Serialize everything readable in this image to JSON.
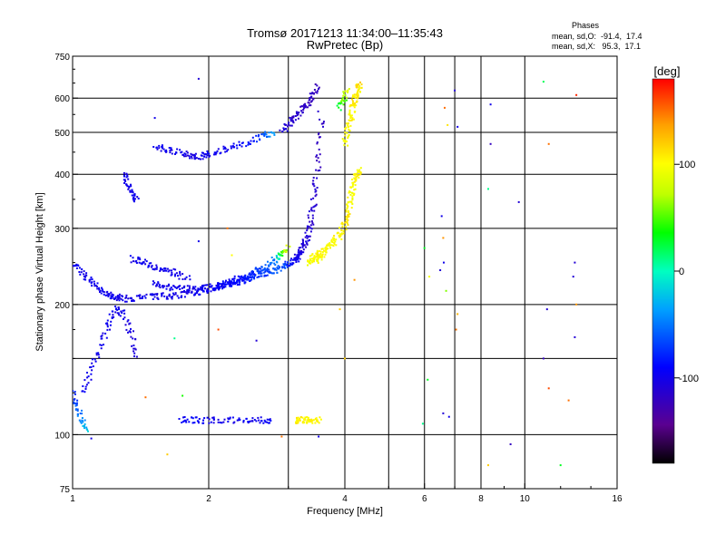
{
  "chart_data": {
    "type": "scatter",
    "title": "Tromsø 20171213 11:34:00–11:35:43",
    "subtitle": "RwPretec (Bp)",
    "xlabel": "Frequency [MHz]",
    "ylabel": "Stationary phase Virtual Height [km]",
    "x_scale": "log",
    "y_scale": "log",
    "xlim": [
      1,
      16
    ],
    "ylim": [
      75,
      750
    ],
    "grid": true,
    "x_ticks": [
      1,
      2,
      4,
      6,
      8,
      10,
      16
    ],
    "x_tick_labels": [
      "1",
      "2",
      "4",
      "6",
      "8",
      "10",
      "16"
    ],
    "y_ticks": [
      75,
      100,
      200,
      300,
      400,
      500,
      600,
      750
    ],
    "y_tick_labels": [
      "75",
      "100",
      "200",
      "300",
      "400",
      "500",
      "600",
      "750"
    ],
    "v_gridlines": [
      2,
      3,
      4,
      5,
      6,
      7,
      8,
      10
    ],
    "h_gridlines": [
      100,
      150,
      200,
      300,
      400,
      500,
      600
    ],
    "stats": {
      "heading": "Phases",
      "line_o": "mean, sd,O:  -91.4,  17.4",
      "line_x": "mean, sd,X:   95.3,  17.1"
    },
    "colorbar": {
      "label": "[deg]",
      "range": [
        -180,
        180
      ],
      "ticks": [
        100,
        0,
        -100
      ],
      "tick_labels": [
        "100",
        "0",
        "-100"
      ]
    },
    "traces": [
      {
        "mode": "O",
        "x": [
          1.52,
          1.62,
          1.72,
          1.82,
          1.92,
          2.0,
          2.15,
          2.3,
          2.5,
          2.65,
          2.8
        ],
        "y": [
          465,
          455,
          448,
          442,
          440,
          445,
          455,
          465,
          478,
          490,
          500
        ],
        "phase": [
          -100,
          -100,
          -100,
          -105,
          -100,
          -100,
          -98,
          -95,
          -85,
          -65,
          -30
        ]
      },
      {
        "mode": "O",
        "x": [
          2.9,
          3.0,
          3.1,
          3.2,
          3.3,
          3.4,
          3.5
        ],
        "y": [
          505,
          520,
          540,
          560,
          585,
          610,
          640
        ],
        "phase": [
          -110,
          -112,
          -115,
          -118,
          -120,
          -120,
          -122
        ]
      },
      {
        "mode": "O",
        "x": [
          1.3,
          1.4,
          1.5,
          1.6,
          1.7,
          1.8,
          1.9,
          2.0,
          2.1,
          2.2,
          2.3,
          2.4,
          2.5,
          2.6,
          2.7,
          2.8,
          2.9,
          3.0,
          3.1,
          3.15,
          3.2,
          3.25,
          3.3,
          3.35,
          3.4,
          3.45,
          3.5,
          3.55
        ],
        "y": [
          206,
          207,
          208,
          209,
          210,
          212,
          214,
          216,
          219,
          222,
          225,
          228,
          231,
          234,
          237,
          240,
          244,
          248,
          254,
          258,
          264,
          272,
          285,
          305,
          335,
          380,
          450,
          560
        ],
        "phase": [
          -100,
          -100,
          -100,
          -100,
          -100,
          -100,
          -98,
          -95,
          -92,
          -90,
          -88,
          -85,
          -80,
          -75,
          -70,
          -62,
          -55,
          -85,
          -95,
          -100,
          -105,
          -108,
          -110,
          -112,
          -112,
          -115,
          -118,
          -118
        ]
      },
      {
        "mode": "O",
        "x": [
          1.5,
          1.6,
          1.7,
          1.8,
          1.9,
          2.0,
          2.1,
          2.2,
          2.3,
          2.4,
          2.5,
          2.6,
          2.7,
          2.8,
          2.9,
          3.0
        ],
        "y": [
          225,
          220,
          218,
          217,
          217,
          219,
          221,
          224,
          228,
          232,
          236,
          240,
          246,
          254,
          262,
          272
        ],
        "phase": [
          -100,
          -100,
          -100,
          -100,
          -100,
          -98,
          -95,
          -92,
          -90,
          -85,
          -80,
          -70,
          -60,
          -40,
          30,
          95
        ]
      },
      {
        "mode": "O",
        "x": [
          1.0,
          1.05,
          1.1,
          1.15,
          1.2,
          1.25,
          1.3
        ],
        "y": [
          250,
          235,
          225,
          215,
          210,
          208,
          207
        ],
        "phase": [
          -100,
          -100,
          -100,
          -100,
          -100,
          -100,
          -100
        ]
      },
      {
        "mode": "O",
        "x": [
          1.35,
          1.42,
          1.5,
          1.6,
          1.7,
          1.8
        ],
        "y": [
          255,
          250,
          245,
          240,
          235,
          230
        ],
        "phase": [
          -100,
          -100,
          -100,
          -100,
          -100,
          -98
        ]
      },
      {
        "mode": "O",
        "x": [
          1.05,
          1.1,
          1.15,
          1.2,
          1.25,
          1.3,
          1.35,
          1.4
        ],
        "y": [
          125,
          140,
          160,
          180,
          195,
          190,
          170,
          150
        ],
        "phase": [
          -95,
          -100,
          -100,
          -100,
          -100,
          -100,
          -105,
          -105
        ]
      },
      {
        "mode": "O",
        "x": [
          1.0,
          1.02,
          1.05,
          1.08
        ],
        "y": [
          125,
          115,
          108,
          102
        ],
        "phase": [
          -80,
          -60,
          -40,
          -20
        ]
      },
      {
        "mode": "O",
        "x": [
          1.3,
          1.33,
          1.36,
          1.39
        ],
        "y": [
          400,
          380,
          360,
          345
        ],
        "phase": [
          -100,
          -100,
          -100,
          -100
        ]
      },
      {
        "mode": "O",
        "x": [
          1.72,
          1.85,
          2.0,
          2.2,
          2.4,
          2.6,
          2.8
        ],
        "y": [
          108,
          108,
          108,
          108,
          108,
          108,
          108
        ],
        "phase": [
          -100,
          -90,
          -100,
          -100,
          -95,
          -100,
          -90
        ]
      },
      {
        "mode": "X",
        "x": [
          3.4,
          3.5,
          3.6,
          3.7,
          3.8,
          3.9,
          4.0,
          4.05,
          4.1,
          4.15,
          4.2,
          4.25,
          4.3
        ],
        "y": [
          258,
          262,
          266,
          272,
          280,
          290,
          305,
          320,
          340,
          360,
          380,
          400,
          410
        ],
        "phase": [
          100,
          105,
          100,
          98,
          102,
          100,
          105,
          110,
          100,
          95,
          100,
          105,
          100
        ]
      },
      {
        "mode": "X",
        "x": [
          3.3,
          3.4,
          3.5,
          3.6
        ],
        "y": [
          250,
          252,
          255,
          258
        ],
        "phase": [
          95,
          98,
          100,
          100
        ]
      },
      {
        "mode": "X",
        "x": [
          4.0,
          4.05,
          4.1,
          4.15,
          4.2,
          4.25,
          4.3,
          4.3
        ],
        "y": [
          470,
          500,
          530,
          560,
          590,
          610,
          630,
          650
        ],
        "phase": [
          95,
          100,
          105,
          100,
          110,
          105,
          100,
          120
        ]
      },
      {
        "mode": "X",
        "x": [
          3.9,
          4.0,
          4.05
        ],
        "y": [
          570,
          600,
          630
        ],
        "phase": [
          20,
          60,
          95
        ]
      },
      {
        "mode": "X",
        "x": [
          3.1,
          3.2,
          3.3,
          3.4,
          3.5
        ],
        "y": [
          108,
          108,
          108,
          108,
          108
        ],
        "phase": [
          100,
          110,
          100,
          105,
          100
        ]
      }
    ],
    "sparse_points": [
      {
        "x": 1.9,
        "y": 665,
        "phase": -110
      },
      {
        "x": 1.52,
        "y": 540,
        "phase": -100
      },
      {
        "x": 6.0,
        "y": 270,
        "phase": 30
      },
      {
        "x": 6.15,
        "y": 232,
        "phase": 95
      },
      {
        "x": 6.5,
        "y": 240,
        "phase": -110
      },
      {
        "x": 6.55,
        "y": 320,
        "phase": -100
      },
      {
        "x": 6.6,
        "y": 285,
        "phase": 140
      },
      {
        "x": 6.62,
        "y": 250,
        "phase": -100
      },
      {
        "x": 6.65,
        "y": 570,
        "phase": 150
      },
      {
        "x": 6.75,
        "y": 520,
        "phase": 110
      },
      {
        "x": 7.0,
        "y": 625,
        "phase": -110
      },
      {
        "x": 7.1,
        "y": 515,
        "phase": -100
      },
      {
        "x": 6.7,
        "y": 215,
        "phase": 60
      },
      {
        "x": 6.6,
        "y": 112,
        "phase": -110
      },
      {
        "x": 6.8,
        "y": 110,
        "phase": -100
      },
      {
        "x": 7.1,
        "y": 190,
        "phase": 130
      },
      {
        "x": 7.05,
        "y": 175,
        "phase": 150
      },
      {
        "x": 6.1,
        "y": 134,
        "phase": 30
      },
      {
        "x": 5.95,
        "y": 106,
        "phase": 10
      },
      {
        "x": 8.4,
        "y": 580,
        "phase": -100
      },
      {
        "x": 8.4,
        "y": 470,
        "phase": -120
      },
      {
        "x": 8.3,
        "y": 370,
        "phase": 10
      },
      {
        "x": 8.3,
        "y": 85,
        "phase": 120
      },
      {
        "x": 9.3,
        "y": 95,
        "phase": -120
      },
      {
        "x": 9.7,
        "y": 345,
        "phase": -110
      },
      {
        "x": 11.0,
        "y": 655,
        "phase": 20
      },
      {
        "x": 11.3,
        "y": 470,
        "phase": 150
      },
      {
        "x": 11.2,
        "y": 195,
        "phase": -110
      },
      {
        "x": 11.0,
        "y": 150,
        "phase": -120
      },
      {
        "x": 11.3,
        "y": 128,
        "phase": 160
      },
      {
        "x": 12.5,
        "y": 120,
        "phase": 150
      },
      {
        "x": 12.8,
        "y": 232,
        "phase": -110
      },
      {
        "x": 12.9,
        "y": 250,
        "phase": -110
      },
      {
        "x": 13.0,
        "y": 610,
        "phase": 170
      },
      {
        "x": 13.0,
        "y": 200,
        "phase": 140
      },
      {
        "x": 12.9,
        "y": 168,
        "phase": -110
      },
      {
        "x": 12.0,
        "y": 85,
        "phase": 30
      },
      {
        "x": 1.9,
        "y": 280,
        "phase": -100
      },
      {
        "x": 2.2,
        "y": 300,
        "phase": 150
      },
      {
        "x": 2.25,
        "y": 260,
        "phase": 100
      },
      {
        "x": 2.1,
        "y": 175,
        "phase": 160
      },
      {
        "x": 2.55,
        "y": 165,
        "phase": -110
      },
      {
        "x": 1.68,
        "y": 167,
        "phase": 10
      },
      {
        "x": 1.45,
        "y": 122,
        "phase": 150
      },
      {
        "x": 1.75,
        "y": 123,
        "phase": 40
      },
      {
        "x": 1.62,
        "y": 90,
        "phase": 120
      },
      {
        "x": 2.9,
        "y": 99,
        "phase": 150
      },
      {
        "x": 3.5,
        "y": 99,
        "phase": -100
      },
      {
        "x": 3.9,
        "y": 195,
        "phase": 120
      },
      {
        "x": 4.2,
        "y": 228,
        "phase": 140
      },
      {
        "x": 4.0,
        "y": 150,
        "phase": 120
      },
      {
        "x": 1.1,
        "y": 98,
        "phase": -100
      }
    ]
  }
}
